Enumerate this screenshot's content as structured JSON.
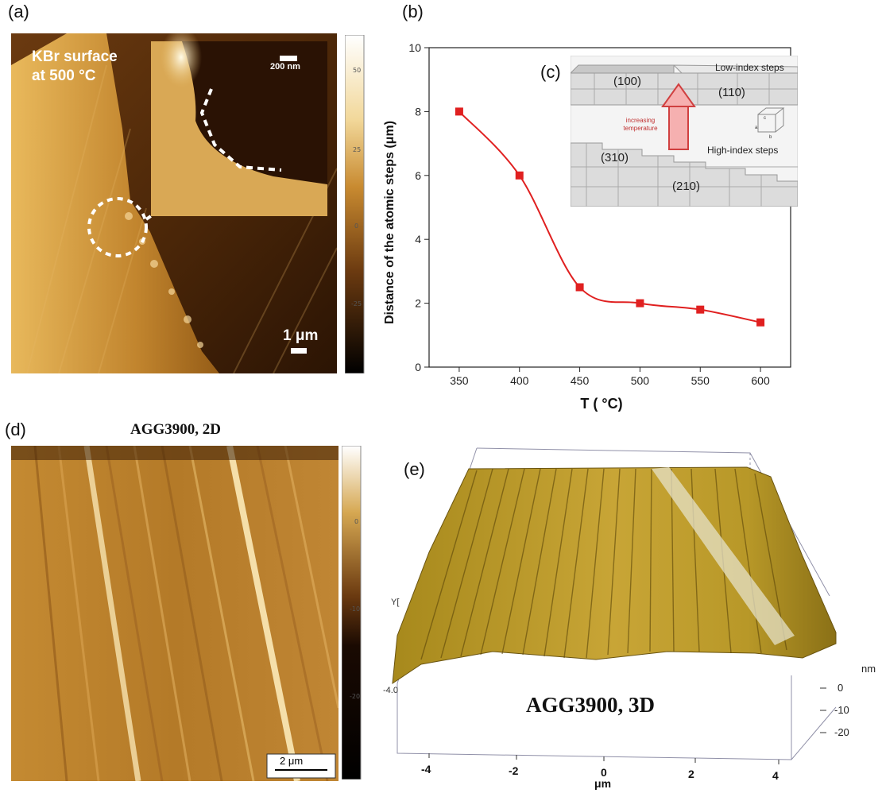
{
  "panels": {
    "a": {
      "label": "(a)",
      "title_line1": "KBr surface",
      "title_line2": "at 500 °C",
      "scalebar": "1 μm",
      "inset_scalebar": "200 nm",
      "colorbar_ticks": [
        "50",
        "25",
        "0",
        "-25"
      ]
    },
    "b": {
      "label": "(b)"
    },
    "c": {
      "label": "(c)",
      "top_title": "Low-index steps",
      "bottom_title": "High-index steps",
      "arrow_text_1": "increasing",
      "arrow_text_2": "temperature",
      "planes": [
        "(100)",
        "(110)",
        "(310)",
        "(210)"
      ],
      "axis_letters": [
        "a",
        "b",
        "c"
      ]
    },
    "d": {
      "label": "(d)",
      "title": "AGG3900, 2D",
      "scalebar": "2 μm",
      "colorbar_ticks": [
        "0",
        "-10",
        "-20"
      ]
    },
    "e": {
      "label": "(e)",
      "title": "AGG3900, 3D",
      "y_axis_fragment": "Y[",
      "y_value": "4.0",
      "z_unit": "nm",
      "z_ticks": [
        "0",
        "-10",
        "-20"
      ],
      "x_ticks": [
        "-4",
        "-2",
        "0",
        "2",
        "4"
      ],
      "x_unit": "μm"
    }
  },
  "chart_data": {
    "type": "line",
    "title": "",
    "xlabel": "T ( °C)",
    "ylabel": "Distance of the atomic steps (μm)",
    "x": [
      350,
      400,
      450,
      500,
      550,
      600
    ],
    "series": [
      {
        "values": [
          8.0,
          6.0,
          2.5,
          2.0,
          1.8,
          1.4
        ],
        "color": "#e02020",
        "marker": "square"
      }
    ],
    "xlim": [
      325,
      625
    ],
    "ylim": [
      0,
      10
    ],
    "xticks": [
      350,
      400,
      450,
      500,
      550,
      600
    ],
    "yticks": [
      0,
      2,
      4,
      6,
      8,
      10
    ],
    "grid": false
  }
}
